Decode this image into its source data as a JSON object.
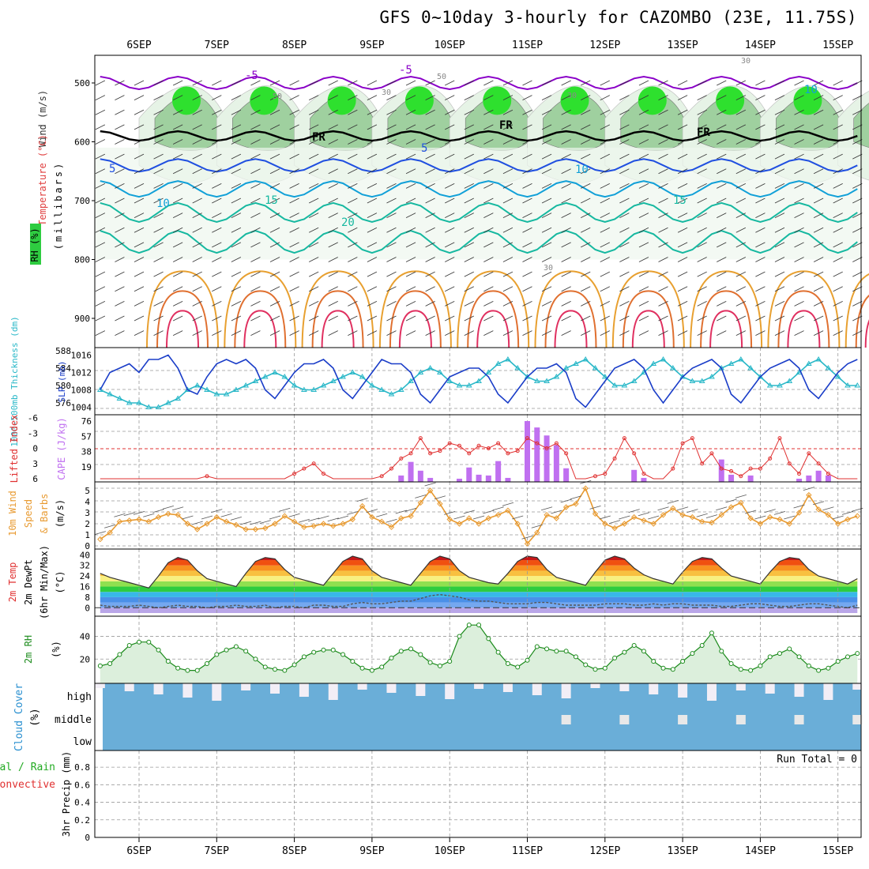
{
  "title": "GFS 0~10day 3-hourly for CAZOMBO (23E, 11.75S)",
  "dates": [
    "6SEP",
    "7SEP",
    "8SEP",
    "9SEP",
    "10SEP",
    "11SEP",
    "12SEP",
    "13SEP",
    "14SEP",
    "15SEP"
  ],
  "colors": {
    "rh_fill": "#2ecc40",
    "temp_purple": "#8a00c8",
    "freeze": "#000000",
    "temp_blue": "#1f4fe0",
    "temp_lblue": "#11a0d8",
    "temp_teal": "#16b8a0",
    "temp_orange": "#e8a030",
    "temp_red": "#e03060",
    "slp": "#1a3dc8",
    "thick": "#2ab8c8",
    "cape": "#c070f0",
    "li": "#e03030",
    "wind10": "#e89a30",
    "rh2m": "#1a8a1a",
    "cloud": "#6aaed8",
    "precip_total": "#22aa22",
    "precip_conv": "#e03030"
  },
  "panels": {
    "upper": {
      "label_wind": "Wind (m/s)",
      "label_temp": "Temperature (°C)",
      "label_rh": "RH (%)",
      "label_units": "(millibars)",
      "yticks": [
        "500",
        "600",
        "700",
        "800",
        "900"
      ],
      "contour_labels": [
        "-5",
        "-5",
        "FR",
        "FR",
        "FR",
        "5",
        "5",
        "10",
        "10",
        "15",
        "15",
        "20",
        "50",
        "50",
        "30",
        "30",
        "10",
        "30",
        "30"
      ]
    },
    "slp": {
      "label_thick": "1000-500mb Thickness (dm)",
      "label_slp": "SLP (mb)",
      "left_ticks": [
        "588",
        "584",
        "580",
        "576"
      ],
      "right_ticks": [
        "1016",
        "1012",
        "1008",
        "1004"
      ]
    },
    "cape": {
      "label_li": "Lifted Index",
      "label_cape": "CAPE (J/kg)",
      "left_ticks": [
        "-6",
        "-3",
        "0",
        "3",
        "6"
      ],
      "right_ticks": [
        "76",
        "57",
        "38",
        "19"
      ]
    },
    "wind10": {
      "label1": "10m Wind",
      "label2": "Speed",
      "label3": "& Barbs",
      "label4": "(m/s)",
      "ticks": [
        "5",
        "4",
        "3",
        "2",
        "1",
        "0"
      ]
    },
    "temp2m": {
      "label1": "2m Temp",
      "label2": "2m DewPt",
      "label3": "(6hr Min/Max)",
      "label4": "(°C)",
      "ticks": [
        "40",
        "32",
        "24",
        "16",
        "8",
        "0"
      ]
    },
    "rh2m": {
      "label1": "2m RH",
      "label2": "(%)",
      "ticks": [
        "40",
        "20"
      ]
    },
    "cloud": {
      "label1": "Cloud Cover",
      "label2": "(%)",
      "levels": [
        "high",
        "middle",
        "low"
      ]
    },
    "precip": {
      "label1": "Total / Rain",
      "label2": "Convective",
      "label3": "3hr Precip (mm)",
      "ticks": [
        "0.8",
        "0.6",
        "0.4",
        "0.2",
        "0"
      ],
      "run_total": "Run Total = 0"
    }
  },
  "chart_data": [
    {
      "type": "line",
      "title": "SLP (mb)",
      "ylim": [
        1003,
        1017
      ],
      "x": [
        "5SEP12",
        "5SEP15",
        "5SEP18",
        "5SEP21",
        "6SEP00",
        "6SEP03",
        "6SEP06",
        "6SEP09",
        "6SEP12",
        "6SEP15",
        "6SEP18",
        "6SEP21",
        "7SEP00",
        "7SEP03",
        "7SEP06",
        "7SEP09",
        "7SEP12",
        "7SEP15",
        "7SEP18",
        "7SEP21",
        "8SEP00",
        "8SEP03",
        "8SEP06",
        "8SEP09",
        "8SEP12",
        "8SEP15",
        "8SEP18",
        "8SEP21",
        "9SEP00",
        "9SEP03",
        "9SEP06",
        "9SEP09",
        "9SEP12",
        "9SEP15",
        "9SEP18",
        "9SEP21",
        "10SEP00",
        "10SEP03",
        "10SEP06",
        "10SEP09",
        "10SEP12",
        "10SEP15",
        "10SEP18",
        "10SEP21",
        "11SEP00",
        "11SEP03",
        "11SEP06",
        "11SEP09",
        "11SEP12",
        "11SEP15",
        "11SEP18",
        "11SEP21",
        "12SEP00",
        "12SEP03",
        "12SEP06",
        "12SEP09",
        "12SEP12",
        "12SEP15",
        "12SEP18",
        "12SEP21",
        "13SEP00",
        "13SEP03",
        "13SEP06",
        "13SEP09",
        "13SEP12",
        "13SEP15",
        "13SEP18",
        "13SEP21",
        "14SEP00",
        "14SEP03",
        "14SEP06",
        "14SEP09",
        "14SEP12",
        "14SEP15",
        "14SEP18",
        "14SEP21",
        "15SEP00",
        "15SEP03",
        "15SEP06"
      ],
      "values": [
        1008,
        1012,
        1013,
        1014,
        1012,
        1015,
        1015,
        1016,
        1013,
        1008,
        1007,
        1011,
        1014,
        1015,
        1014,
        1015,
        1013,
        1008,
        1006,
        1009,
        1012,
        1014,
        1014,
        1015,
        1013,
        1008,
        1006,
        1009,
        1012,
        1015,
        1014,
        1014,
        1012,
        1007,
        1005,
        1008,
        1011,
        1012,
        1013,
        1013,
        1011,
        1007,
        1005,
        1008,
        1011,
        1013,
        1013,
        1014,
        1012,
        1006,
        1004,
        1007,
        1010,
        1013,
        1014,
        1015,
        1013,
        1008,
        1005,
        1008,
        1011,
        1013,
        1014,
        1015,
        1013,
        1007,
        1005,
        1008,
        1011,
        1013,
        1014,
        1015,
        1013,
        1008,
        1006,
        1009,
        1012,
        1014,
        1015
      ]
    },
    {
      "type": "line",
      "title": "1000-500mb Thickness (dm)",
      "ylim": [
        574,
        588
      ],
      "values": [
        579,
        578,
        577,
        576,
        576,
        575,
        575,
        576,
        577,
        579,
        580,
        579,
        578,
        578,
        579,
        580,
        581,
        582,
        583,
        582,
        580,
        579,
        579,
        580,
        581,
        582,
        583,
        582,
        580,
        579,
        578,
        579,
        581,
        583,
        584,
        583,
        581,
        580,
        580,
        581,
        583,
        585,
        586,
        584,
        582,
        581,
        581,
        582,
        584,
        585,
        586,
        584,
        582,
        580,
        580,
        581,
        583,
        585,
        586,
        584,
        582,
        581,
        581,
        582,
        584,
        585,
        586,
        584,
        582,
        580,
        580,
        581,
        583,
        585,
        586,
        584,
        582,
        580,
        580
      ]
    },
    {
      "type": "bar",
      "title": "CAPE (J/kg)",
      "ylim": [
        0,
        76
      ],
      "values": [
        0,
        0,
        0,
        0,
        0,
        0,
        0,
        0,
        0,
        0,
        0,
        0,
        0,
        0,
        0,
        0,
        0,
        0,
        0,
        0,
        0,
        0,
        0,
        0,
        0,
        0,
        0,
        0,
        0,
        0,
        0,
        8,
        25,
        14,
        5,
        0,
        0,
        4,
        18,
        9,
        8,
        26,
        5,
        0,
        76,
        68,
        58,
        46,
        17,
        0,
        0,
        0,
        0,
        0,
        0,
        15,
        5,
        0,
        0,
        0,
        0,
        0,
        0,
        0,
        28,
        9,
        0,
        8,
        0,
        0,
        0,
        0,
        4,
        8,
        14,
        8,
        0,
        0,
        0
      ]
    },
    {
      "type": "line",
      "title": "Lifted Index",
      "ylim": [
        -6,
        6
      ],
      "values": [
        6,
        6,
        6,
        6,
        6,
        6,
        6,
        6,
        6,
        6,
        6,
        5.5,
        6,
        6,
        6,
        6,
        6,
        6,
        6,
        6,
        5,
        4,
        3,
        5,
        6,
        6,
        6,
        6,
        6,
        5.5,
        4,
        2,
        1,
        -2,
        1,
        0.5,
        -1,
        -0.5,
        1,
        -0.5,
        0,
        -1,
        1,
        0.5,
        -2,
        -1,
        0,
        -1,
        1,
        6,
        6,
        5.5,
        5,
        2,
        -2,
        1,
        5,
        6,
        6,
        4,
        -1,
        -2,
        3,
        1,
        4,
        4.5,
        5.5,
        4,
        4,
        2,
        -2,
        3,
        5,
        1,
        3,
        5,
        6,
        6,
        6
      ]
    },
    {
      "type": "line",
      "title": "10m Wind Speed (m/s)",
      "ylim": [
        0,
        5.5
      ],
      "values": [
        0.6,
        1.2,
        2.2,
        2.3,
        2.4,
        2.2,
        2.6,
        2.9,
        2.8,
        2.0,
        1.5,
        2.0,
        2.6,
        2.2,
        1.9,
        1.5,
        1.5,
        1.6,
        2.0,
        2.7,
        2.2,
        1.7,
        1.8,
        2.0,
        1.8,
        2.0,
        2.4,
        3.6,
        2.6,
        2.2,
        1.7,
        2.5,
        2.7,
        3.9,
        5.0,
        3.8,
        2.4,
        2.0,
        2.5,
        2.0,
        2.5,
        2.8,
        3.2,
        2.0,
        0.2,
        1.2,
        2.8,
        2.5,
        3.5,
        3.8,
        5.2,
        2.9,
        2.0,
        1.6,
        2.0,
        2.6,
        2.3,
        2.0,
        2.8,
        3.4,
        2.8,
        2.6,
        2.2,
        2.1,
        2.8,
        3.5,
        3.9,
        2.5,
        2.0,
        2.6,
        2.4,
        2.0,
        3.0,
        4.6,
        3.3,
        2.8,
        2.0,
        2.4,
        2.7
      ]
    },
    {
      "type": "area",
      "title": "2m Temp (°C)",
      "ylim": [
        -4,
        42
      ],
      "values": [
        26,
        23,
        21,
        19,
        17,
        15,
        24,
        34,
        38,
        36,
        28,
        22,
        20,
        18,
        16,
        26,
        35,
        38,
        37,
        29,
        23,
        21,
        19,
        17,
        26,
        35,
        39,
        37,
        28,
        23,
        21,
        19,
        17,
        26,
        35,
        39,
        37,
        28,
        23,
        21,
        19,
        18,
        26,
        35,
        39,
        38,
        29,
        23,
        21,
        19,
        17,
        27,
        36,
        39,
        37,
        30,
        25,
        22,
        20,
        18,
        27,
        35,
        38,
        37,
        30,
        24,
        22,
        20,
        18,
        27,
        35,
        38,
        37,
        29,
        24,
        22,
        20,
        18,
        22
      ]
    },
    {
      "type": "line",
      "title": "2m DewPt (°C)",
      "values": [
        2,
        1,
        1,
        1,
        2,
        1,
        0,
        1,
        2,
        1,
        1,
        0,
        1,
        1,
        2,
        1,
        1,
        2,
        0,
        1,
        1,
        0,
        2,
        2,
        1,
        1,
        3,
        4,
        3,
        3,
        4,
        5,
        5,
        7,
        9,
        10,
        9,
        8,
        6,
        5,
        5,
        4,
        3,
        3,
        3,
        4,
        4,
        3,
        2,
        2,
        2,
        2,
        3,
        3,
        3,
        2,
        2,
        3,
        2,
        3,
        3,
        2,
        2,
        2,
        1,
        1,
        2,
        3,
        3,
        2,
        1,
        1,
        2,
        3,
        3,
        2,
        1,
        0,
        2
      ]
    },
    {
      "type": "area",
      "title": "2m RH (%)",
      "ylim": [
        0,
        55
      ],
      "values": [
        14,
        16,
        24,
        32,
        35,
        35,
        28,
        18,
        12,
        10,
        10,
        16,
        24,
        28,
        31,
        27,
        20,
        13,
        11,
        10,
        15,
        22,
        26,
        28,
        28,
        24,
        18,
        12,
        10,
        13,
        21,
        27,
        29,
        24,
        17,
        14,
        18,
        40,
        50,
        50,
        38,
        26,
        16,
        13,
        19,
        31,
        29,
        27,
        27,
        22,
        15,
        11,
        12,
        21,
        26,
        32,
        27,
        18,
        12,
        11,
        18,
        25,
        32,
        43,
        27,
        16,
        11,
        10,
        14,
        22,
        25,
        29,
        22,
        14,
        10,
        12,
        18,
        22,
        25
      ]
    },
    {
      "type": "table",
      "title": "Cloud Cover (%)",
      "levels": [
        "high",
        "middle",
        "low"
      ],
      "note": "low cloud 100%, high/middle variable"
    },
    {
      "type": "bar",
      "title": "3hr Precip (mm)",
      "ylim": [
        0,
        0.9
      ],
      "values": [
        0
      ],
      "run_total": "Run Total = 0"
    }
  ]
}
